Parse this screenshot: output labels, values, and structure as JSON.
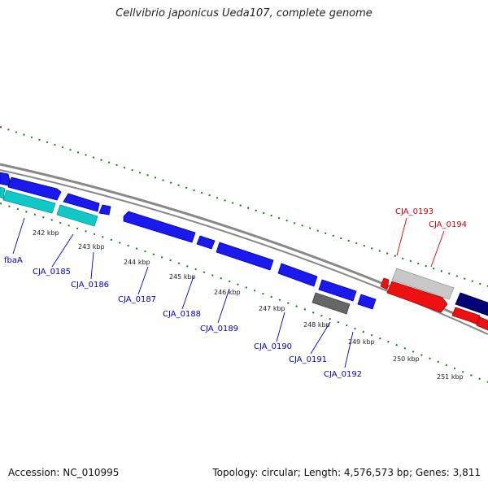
{
  "title": "Cellvibrio japonicus Ueda107, complete genome",
  "footer": {
    "accession": "Accession: NC_010995",
    "summary": "Topology: circular; Length: 4,576,573 bp; Genes: 3,811"
  },
  "colors": {
    "forward_gene": "#1a1aee",
    "cyan_gene": "#10c8c8",
    "red_gene": "#ee1111",
    "navy_gene": "#000077",
    "gray_gene": "#666666",
    "lightgray_gene": "#c8c8c8",
    "backbone": "#888888",
    "ticks": "#1a7a1a",
    "label_blue": "#0000cc",
    "label_red": "#dd0000"
  },
  "kbp_labels": [
    "242 kbp",
    "243 kbp",
    "244 kbp",
    "245 kbp",
    "246 kbp",
    "247 kbp",
    "248 kbp",
    "249 kbp",
    "250 kbp",
    "251 kbp"
  ],
  "gene_labels": {
    "fbaA": "fbaA",
    "CJA_0185": "CJA_0185",
    "CJA_0186": "CJA_0186",
    "CJA_0187": "CJA_0187",
    "CJA_0188": "CJA_0188",
    "CJA_0189": "CJA_0189",
    "CJA_0190": "CJA_0190",
    "CJA_0191": "CJA_0191",
    "CJA_0192": "CJA_0192",
    "CJA_0193": "CJA_0193",
    "CJA_0194": "CJA_0194"
  }
}
